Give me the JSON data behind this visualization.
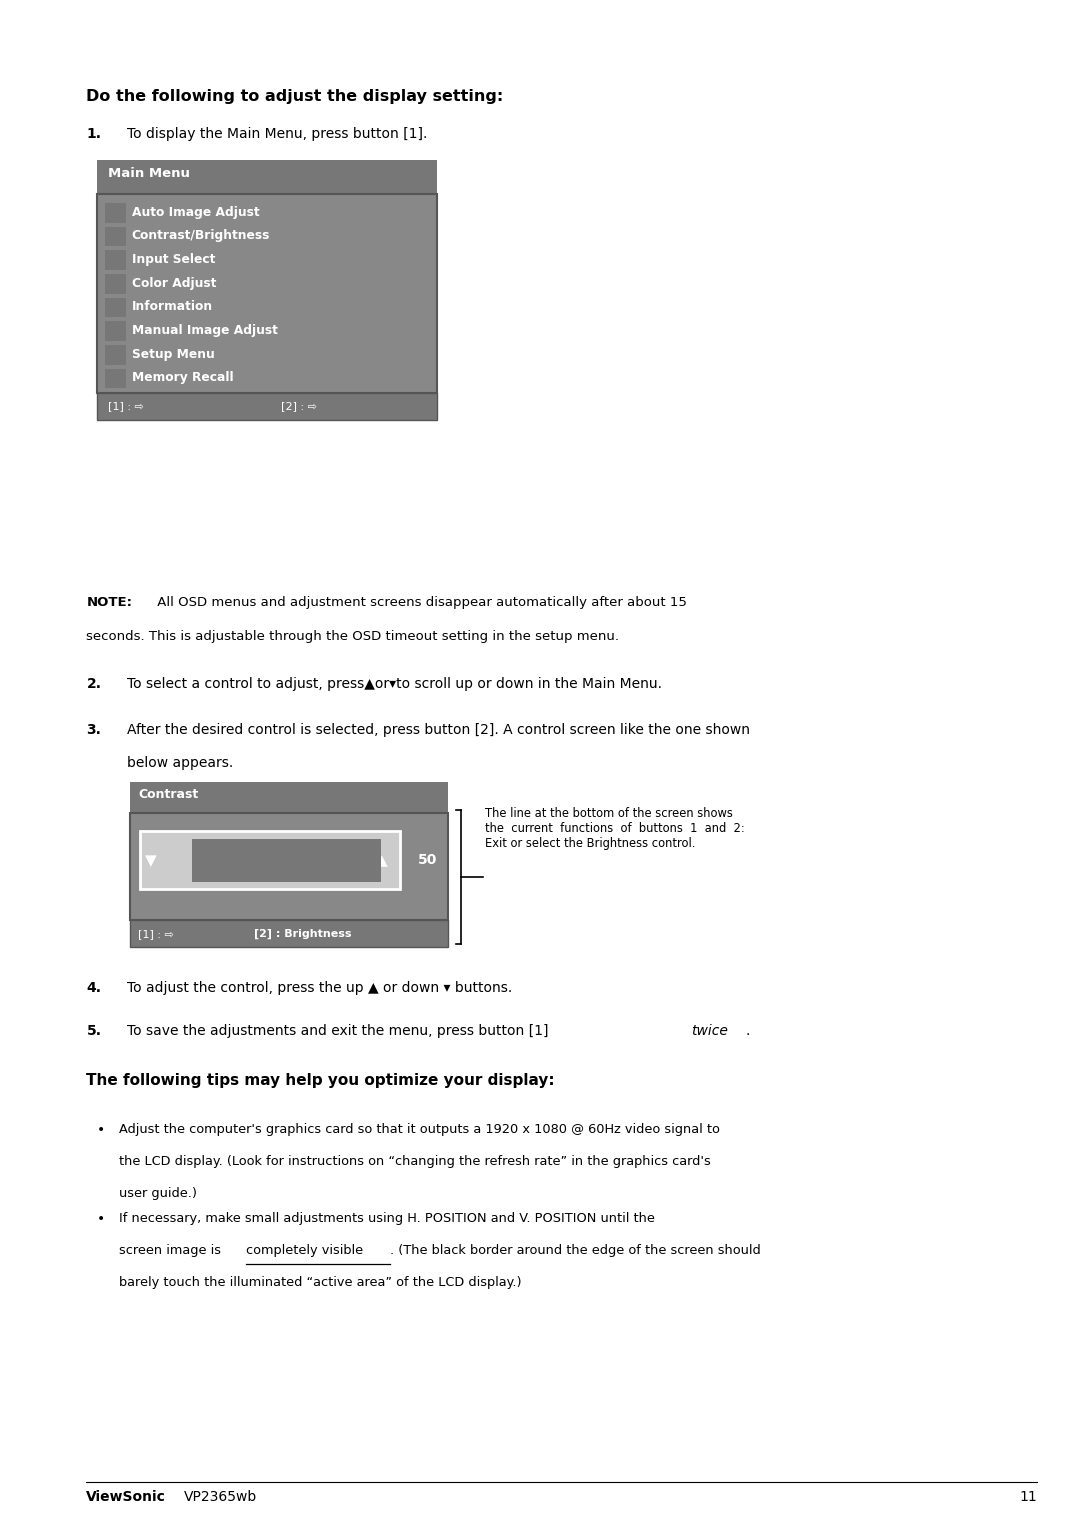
{
  "bg_color": "#ffffff",
  "text_color": "#000000",
  "page_width": 10.8,
  "page_height": 15.28,
  "heading1": "Do the following to adjust the display setting:",
  "heading2": "The following tips may help you optimize your display:",
  "step1": "To display the Main Menu, press button [1].",
  "note_bold": "NOTE:",
  "note_rest": " All OSD menus and adjustment screens disappear automatically after about 15",
  "note_line2": "seconds. This is adjustable through the OSD timeout setting in the setup menu.",
  "step2": "To select a control to adjust, press▲or▾to scroll up or down in the Main Menu.",
  "step3a": "After the desired control is selected, press button [2]. A control screen like the one shown",
  "step3b": "below appears.",
  "step4": "To adjust the control, press the up ▲ or down ▾ buttons.",
  "step5_main": "To save the adjustments and exit the menu, press button [1] ",
  "step5_italic": "twice",
  "step5_end": ".",
  "menu_items": [
    "Auto Image Adjust",
    "Contrast/Brightness",
    "Input Select",
    "Color Adjust",
    "Information",
    "Manual Image Adjust",
    "Setup Menu",
    "Memory Recall"
  ],
  "callout_text": "The line at the bottom of the screen shows\nthe  current  functions  of  buttons  1  and  2:\nExit or select the Brightness control.",
  "bullet1_line1": "Adjust the computer's graphics card so that it outputs a 1920 x 1080 @ 60Hz video signal to",
  "bullet1_line2": "the LCD display. (Look for instructions on “changing the refresh rate” in the graphics card's",
  "bullet1_line3": "user guide.)",
  "bullet2_line1": "If necessary, make small adjustments using H. POSITION and V. POSITION until the",
  "bullet2_line2a": "screen image is ",
  "bullet2_line2b": "completely visible",
  "bullet2_line2c": ". (The black border around the edge of the screen should",
  "bullet2_line3": "barely touch the illuminated “active area” of the LCD display.)",
  "footer_brand": "ViewSonic",
  "footer_model": "VP2365wb",
  "footer_page": "11",
  "menu_gray_dark": "#777777",
  "menu_gray_mid": "#888888",
  "menu_gray_light": "#aaaaaa",
  "slider_light": "#cccccc"
}
